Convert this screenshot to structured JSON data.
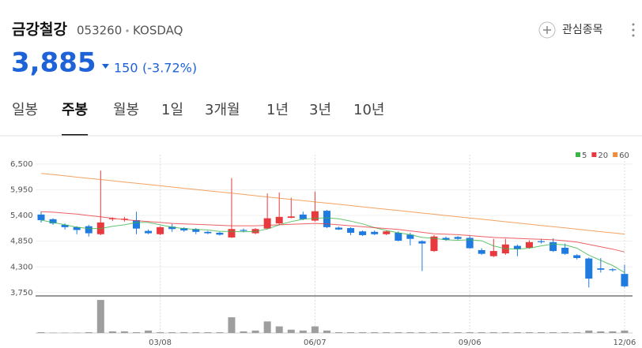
{
  "header": {
    "name": "금강철강",
    "code": "053260",
    "market": "KOSDAQ",
    "watch": "관심종목"
  },
  "quote": {
    "price": "3,885",
    "change": "150",
    "change_pct": "(-3.72%)"
  },
  "tabs": [
    "일봉",
    "주봉",
    "월봉",
    "1일",
    "3개월",
    "1년",
    "3년",
    "10년"
  ],
  "selected_tab": 1,
  "chart_data": {
    "type": "candlestick",
    "categories": [
      null,
      null,
      null,
      null,
      null,
      null,
      null,
      null,
      null,
      null,
      "03/08",
      null,
      null,
      null,
      null,
      null,
      null,
      null,
      null,
      null,
      null,
      null,
      null,
      "06/07",
      null,
      null,
      null,
      null,
      null,
      null,
      null,
      null,
      null,
      null,
      null,
      null,
      "09/06",
      null,
      null,
      null,
      null,
      null,
      null,
      null,
      null,
      null,
      null,
      null,
      null,
      "12/06"
    ],
    "open": [
      5420,
      5320,
      5200,
      5150,
      5170,
      5000,
      5320,
      5310,
      5300,
      5070,
      5000,
      5160,
      5130,
      5110,
      5050,
      5030,
      4930,
      5090,
      5020,
      5120,
      5230,
      5350,
      5420,
      5290,
      5500,
      5140,
      5130,
      5060,
      5050,
      5000,
      5030,
      4990,
      4850,
      4640,
      4920,
      4940,
      4920,
      4660,
      4530,
      4590,
      4750,
      4710,
      4850,
      4830,
      4710,
      4550,
      4480,
      4270,
      4250,
      4150
    ],
    "high": [
      5480,
      5340,
      5230,
      5170,
      5200,
      6360,
      5360,
      5370,
      5480,
      5100,
      5170,
      5220,
      5150,
      5130,
      5070,
      5050,
      6200,
      5120,
      5130,
      5870,
      5890,
      5780,
      5480,
      5910,
      5520,
      5160,
      5150,
      5080,
      5080,
      5080,
      5060,
      5030,
      4870,
      4980,
      4950,
      4960,
      4960,
      4700,
      4900,
      4900,
      4780,
      4870,
      4900,
      4910,
      4800,
      4570,
      4500,
      4490,
      4270,
      4350
    ],
    "low": [
      5250,
      5200,
      5100,
      5000,
      4950,
      4980,
      5280,
      5270,
      5000,
      5000,
      4980,
      5050,
      5050,
      5000,
      5000,
      4970,
      4920,
      5040,
      5000,
      5110,
      5200,
      5340,
      5300,
      5270,
      5130,
      5090,
      4980,
      4960,
      4980,
      4980,
      4850,
      4760,
      4210,
      4620,
      4860,
      4880,
      4690,
      4560,
      4510,
      4560,
      4530,
      4690,
      4800,
      4620,
      4560,
      4460,
      3860,
      4180,
      4200,
      3860
    ],
    "close": [
      5300,
      5230,
      5150,
      5090,
      5020,
      5250,
      5340,
      5330,
      5120,
      5020,
      5150,
      5110,
      5080,
      5050,
      5020,
      4990,
      5110,
      5070,
      5110,
      5340,
      5370,
      5380,
      5320,
      5490,
      5150,
      5100,
      5030,
      4980,
      5000,
      5060,
      4860,
      4900,
      4800,
      4950,
      4880,
      4900,
      4700,
      4580,
      4640,
      4780,
      4680,
      4830,
      4830,
      4640,
      4580,
      4490,
      4050,
      4240,
      4230,
      3885
    ],
    "up_color": "#e8393e",
    "down_color": "#1f7be0",
    "series": [
      {
        "name": "5",
        "color": "#3cb44b",
        "values": [
          5300,
          5250,
          5200,
          5150,
          5120,
          5120,
          5170,
          5200,
          5250,
          5250,
          5200,
          5150,
          5120,
          5100,
          5090,
          5060,
          5060,
          5050,
          5060,
          5110,
          5200,
          5270,
          5320,
          5340,
          5350,
          5330,
          5280,
          5220,
          5140,
          5080,
          5030,
          4990,
          4930,
          4910,
          4880,
          4870,
          4880,
          4860,
          4750,
          4690,
          4680,
          4700,
          4750,
          4790,
          4770,
          4700,
          4550,
          4440,
          4330,
          4180
        ]
      },
      {
        "name": "20",
        "color": "#e8393e",
        "values": [
          5480,
          5470,
          5450,
          5430,
          5400,
          5370,
          5340,
          5310,
          5290,
          5270,
          5250,
          5230,
          5220,
          5210,
          5200,
          5190,
          5180,
          5180,
          5180,
          5190,
          5200,
          5210,
          5220,
          5230,
          5220,
          5200,
          5180,
          5160,
          5140,
          5120,
          5100,
          5070,
          5040,
          5010,
          5000,
          4990,
          4970,
          4950,
          4930,
          4920,
          4910,
          4900,
          4890,
          4880,
          4860,
          4830,
          4780,
          4730,
          4680,
          4620
        ]
      },
      {
        "name": "60",
        "color": "#f08c3c",
        "values": [
          6300,
          6274,
          6247,
          6220,
          6194,
          6168,
          6141,
          6114,
          6088,
          6062,
          6035,
          6008,
          5982,
          5956,
          5929,
          5902,
          5876,
          5850,
          5823,
          5796,
          5770,
          5744,
          5717,
          5690,
          5664,
          5638,
          5611,
          5584,
          5558,
          5532,
          5505,
          5478,
          5452,
          5426,
          5399,
          5372,
          5346,
          5320,
          5293,
          5266,
          5240,
          5214,
          5187,
          5160,
          5134,
          5108,
          5081,
          5054,
          5028,
          5002
        ]
      }
    ],
    "ylim": [
      3680,
      6700
    ],
    "yticks": [
      {
        "value": 6500,
        "label": "6,500"
      },
      {
        "value": 5950,
        "label": "5,950"
      },
      {
        "value": 5400,
        "label": "5,400"
      },
      {
        "value": 4850,
        "label": "4,850"
      },
      {
        "value": 4300,
        "label": "4,300"
      },
      {
        "value": 3750,
        "label": "3,750"
      }
    ],
    "grid": true,
    "volume": {
      "color": "#9e9e9e",
      "ylim": [
        0,
        42
      ],
      "values": [
        1,
        0.5,
        0.5,
        0.5,
        1,
        40,
        2,
        2,
        1,
        3,
        1,
        1,
        1,
        1,
        1,
        1,
        19,
        2,
        3,
        14,
        8,
        4,
        3,
        8,
        3,
        1,
        1,
        1,
        1,
        1,
        1,
        1,
        1,
        1,
        1,
        1,
        1,
        1,
        1,
        1,
        1,
        1,
        1,
        1,
        1,
        1,
        3,
        2,
        2,
        3
      ]
    }
  }
}
